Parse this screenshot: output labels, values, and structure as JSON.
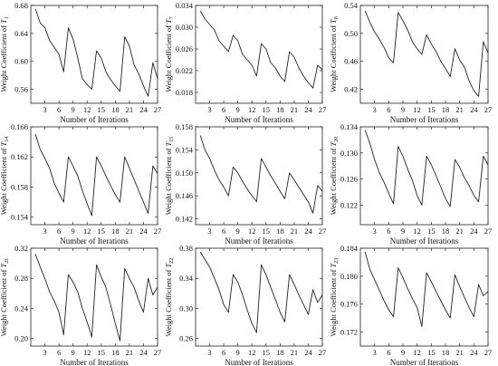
{
  "chart_data": [
    {
      "type": "line",
      "ylabel": {
        "prefix": "Weight Coefficient of ",
        "symbol": "T",
        "subscript": "1"
      },
      "xlabel": "Number of Iterations",
      "xlim": [
        0,
        27
      ],
      "xticks": [
        3,
        6,
        9,
        12,
        15,
        18,
        21,
        24,
        27
      ],
      "ylim": [
        0.54,
        0.68
      ],
      "yticks": [
        0.56,
        0.6,
        0.64,
        0.68
      ],
      "ytick_labels": [
        "0.56",
        "0.60",
        "0.64",
        "0.68"
      ],
      "x": [
        1,
        2,
        3,
        4,
        5,
        6,
        7,
        8,
        9,
        10,
        11,
        12,
        13,
        14,
        15,
        16,
        17,
        18,
        19,
        20,
        21,
        22,
        23,
        24,
        25,
        26,
        27
      ],
      "y": [
        0.675,
        0.655,
        0.648,
        0.63,
        0.62,
        0.61,
        0.585,
        0.648,
        0.632,
        0.605,
        0.575,
        0.567,
        0.56,
        0.615,
        0.605,
        0.585,
        0.574,
        0.565,
        0.557,
        0.635,
        0.622,
        0.595,
        0.582,
        0.565,
        0.55,
        0.598,
        0.575
      ]
    },
    {
      "type": "line",
      "ylabel": {
        "prefix": "Weight Coefficient of ",
        "symbol": "T",
        "subscript": "7"
      },
      "xlabel": "Number of Iterations",
      "xlim": [
        0,
        27
      ],
      "xticks": [
        3,
        6,
        9,
        12,
        15,
        18,
        21,
        24,
        27
      ],
      "ylim": [
        0.016,
        0.034
      ],
      "yticks": [
        0.018,
        0.022,
        0.026,
        0.03,
        0.034
      ],
      "ytick_labels": [
        "0.018",
        "0.022",
        "0.026",
        "0.030",
        "0.034"
      ],
      "x": [
        1,
        2,
        3,
        4,
        5,
        6,
        7,
        8,
        9,
        10,
        11,
        12,
        13,
        14,
        15,
        16,
        17,
        18,
        19,
        20,
        21,
        22,
        23,
        24,
        25,
        26,
        27
      ],
      "y": [
        0.033,
        0.0315,
        0.0305,
        0.0295,
        0.0275,
        0.0265,
        0.0255,
        0.0285,
        0.0275,
        0.025,
        0.024,
        0.023,
        0.021,
        0.027,
        0.026,
        0.0235,
        0.0225,
        0.021,
        0.02,
        0.0255,
        0.0245,
        0.0225,
        0.021,
        0.0198,
        0.0188,
        0.023,
        0.0222
      ]
    },
    {
      "type": "line",
      "ylabel": {
        "prefix": "Weight Coefficient of ",
        "symbol": "T",
        "subscript": "8"
      },
      "xlabel": "Number of Iterations",
      "xlim": [
        0,
        27
      ],
      "xticks": [
        3,
        6,
        9,
        12,
        15,
        18,
        21,
        24,
        27
      ],
      "ylim": [
        0.4,
        0.54
      ],
      "yticks": [
        0.42,
        0.46,
        0.5,
        0.54
      ],
      "ytick_labels": [
        "0.42",
        "0.46",
        "0.50",
        "0.54"
      ],
      "x": [
        1,
        2,
        3,
        4,
        5,
        6,
        7,
        8,
        9,
        10,
        11,
        12,
        13,
        14,
        15,
        16,
        17,
        18,
        19,
        20,
        21,
        22,
        23,
        24,
        25,
        26,
        27
      ],
      "y": [
        0.532,
        0.516,
        0.502,
        0.492,
        0.48,
        0.465,
        0.458,
        0.53,
        0.518,
        0.505,
        0.488,
        0.478,
        0.47,
        0.498,
        0.485,
        0.474,
        0.46,
        0.45,
        0.438,
        0.478,
        0.462,
        0.452,
        0.432,
        0.418,
        0.41,
        0.488,
        0.472
      ]
    },
    {
      "type": "line",
      "ylabel": {
        "prefix": "Weight Coefficient of ",
        "symbol": "T",
        "subscript": "14"
      },
      "xlabel": "Number of Iterations",
      "xlim": [
        0,
        27
      ],
      "xticks": [
        3,
        6,
        9,
        12,
        15,
        18,
        21,
        24,
        27
      ],
      "ylim": [
        0.153,
        0.166
      ],
      "yticks": [
        0.154,
        0.158,
        0.162,
        0.166
      ],
      "ytick_labels": [
        "0.154",
        "0.158",
        "0.162",
        "0.166"
      ],
      "x": [
        1,
        2,
        3,
        4,
        5,
        6,
        7,
        8,
        9,
        10,
        11,
        12,
        13,
        14,
        15,
        16,
        17,
        18,
        19,
        20,
        21,
        22,
        23,
        24,
        25,
        26,
        27
      ],
      "y": [
        0.165,
        0.163,
        0.1618,
        0.1605,
        0.1585,
        0.1572,
        0.156,
        0.162,
        0.1608,
        0.1595,
        0.1575,
        0.1558,
        0.1542,
        0.162,
        0.1608,
        0.1595,
        0.1582,
        0.157,
        0.156,
        0.162,
        0.1605,
        0.159,
        0.1575,
        0.156,
        0.1545,
        0.1608,
        0.1598
      ]
    },
    {
      "type": "line",
      "ylabel": {
        "prefix": "Weight Coefficient of ",
        "symbol": "T",
        "subscript": "15"
      },
      "xlabel": "Number of Iterations",
      "xlim": [
        0,
        27
      ],
      "xticks": [
        3,
        6,
        9,
        12,
        15,
        18,
        21,
        24,
        27
      ],
      "ylim": [
        0.141,
        0.158
      ],
      "yticks": [
        0.142,
        0.146,
        0.15,
        0.154,
        0.158
      ],
      "ytick_labels": [
        "0.142",
        "0.146",
        "0.150",
        "0.154",
        "0.158"
      ],
      "x": [
        1,
        2,
        3,
        4,
        5,
        6,
        7,
        8,
        9,
        10,
        11,
        12,
        13,
        14,
        15,
        16,
        17,
        18,
        19,
        20,
        21,
        22,
        23,
        24,
        25,
        26,
        27
      ],
      "y": [
        0.1565,
        0.154,
        0.1525,
        0.1505,
        0.1488,
        0.1475,
        0.146,
        0.151,
        0.15,
        0.1485,
        0.1472,
        0.146,
        0.145,
        0.1525,
        0.151,
        0.1495,
        0.1482,
        0.1468,
        0.1455,
        0.15,
        0.1488,
        0.1475,
        0.1462,
        0.145,
        0.143,
        0.1478,
        0.1468
      ]
    },
    {
      "type": "line",
      "ylabel": {
        "prefix": "Weight Coefficient of ",
        "symbol": "T",
        "subscript": "20"
      },
      "xlabel": "Number of Iterations",
      "xlim": [
        0,
        27
      ],
      "xticks": [
        3,
        6,
        9,
        12,
        15,
        18,
        21,
        24,
        27
      ],
      "ylim": [
        0.119,
        0.134
      ],
      "yticks": [
        0.122,
        0.126,
        0.13,
        0.134
      ],
      "ytick_labels": [
        "0.122",
        "0.126",
        "0.130",
        "0.134"
      ],
      "x": [
        1,
        2,
        3,
        4,
        5,
        6,
        7,
        8,
        9,
        10,
        11,
        12,
        13,
        14,
        15,
        16,
        17,
        18,
        19,
        20,
        21,
        22,
        23,
        24,
        25,
        26,
        27
      ],
      "y": [
        0.1335,
        0.1315,
        0.129,
        0.127,
        0.1255,
        0.1238,
        0.1222,
        0.131,
        0.1295,
        0.1275,
        0.1258,
        0.1235,
        0.122,
        0.1295,
        0.1282,
        0.1265,
        0.1248,
        0.123,
        0.1218,
        0.129,
        0.1278,
        0.1262,
        0.125,
        0.1235,
        0.1225,
        0.1295,
        0.1282
      ]
    },
    {
      "type": "line",
      "ylabel": {
        "prefix": "Weight Coefficient of ",
        "symbol": "T",
        "subscript": "21"
      },
      "xlabel": "Number of Iterations",
      "xlim": [
        0,
        27
      ],
      "xticks": [
        3,
        6,
        9,
        12,
        15,
        18,
        21,
        24,
        27
      ],
      "ylim": [
        0.19,
        0.32
      ],
      "yticks": [
        0.2,
        0.24,
        0.28,
        0.32
      ],
      "ytick_labels": [
        "0.20",
        "0.24",
        "0.28",
        "0.32"
      ],
      "x": [
        1,
        2,
        3,
        4,
        5,
        6,
        7,
        8,
        9,
        10,
        11,
        12,
        13,
        14,
        15,
        16,
        17,
        18,
        19,
        20,
        21,
        22,
        23,
        24,
        25,
        26,
        27
      ],
      "y": [
        0.312,
        0.295,
        0.28,
        0.262,
        0.25,
        0.235,
        0.205,
        0.285,
        0.275,
        0.262,
        0.24,
        0.222,
        0.202,
        0.298,
        0.282,
        0.268,
        0.245,
        0.22,
        0.197,
        0.293,
        0.28,
        0.268,
        0.25,
        0.235,
        0.28,
        0.258,
        0.268
      ]
    },
    {
      "type": "line",
      "ylabel": {
        "prefix": "Weight Coefficient of ",
        "symbol": "T",
        "subscript": "22"
      },
      "xlabel": "Number of Iterations",
      "xlim": [
        0,
        27
      ],
      "xticks": [
        3,
        6,
        9,
        12,
        15,
        18,
        21,
        24,
        27
      ],
      "ylim": [
        0.25,
        0.38
      ],
      "yticks": [
        0.26,
        0.3,
        0.34,
        0.38
      ],
      "ytick_labels": [
        "0.26",
        "0.30",
        "0.34",
        "0.38"
      ],
      "x": [
        1,
        2,
        3,
        4,
        5,
        6,
        7,
        8,
        9,
        10,
        11,
        12,
        13,
        14,
        15,
        16,
        17,
        18,
        19,
        20,
        21,
        22,
        23,
        24,
        25,
        26,
        27
      ],
      "y": [
        0.375,
        0.365,
        0.355,
        0.34,
        0.325,
        0.305,
        0.295,
        0.345,
        0.335,
        0.318,
        0.298,
        0.28,
        0.268,
        0.358,
        0.345,
        0.328,
        0.312,
        0.295,
        0.282,
        0.345,
        0.332,
        0.318,
        0.305,
        0.292,
        0.325,
        0.308,
        0.318
      ]
    },
    {
      "type": "line",
      "ylabel": {
        "prefix": "Weight Coefficient of ",
        "symbol": "T",
        "subscript": "23"
      },
      "xlabel": "Number of Iterations",
      "xlim": [
        0,
        27
      ],
      "xticks": [
        3,
        6,
        9,
        12,
        15,
        18,
        21,
        24,
        27
      ],
      "ylim": [
        0.17,
        0.184
      ],
      "yticks": [
        0.172,
        0.176,
        0.18,
        0.184
      ],
      "ytick_labels": [
        "0.172",
        "0.176",
        "0.180",
        "0.184"
      ],
      "x": [
        1,
        2,
        3,
        4,
        5,
        6,
        7,
        8,
        9,
        10,
        11,
        12,
        13,
        14,
        15,
        16,
        17,
        18,
        19,
        20,
        21,
        22,
        23,
        24,
        25,
        26,
        27
      ],
      "y": [
        0.1835,
        0.181,
        0.1795,
        0.178,
        0.1765,
        0.1752,
        0.1742,
        0.1812,
        0.1798,
        0.1782,
        0.1768,
        0.1755,
        0.1728,
        0.1805,
        0.1792,
        0.1778,
        0.1765,
        0.1752,
        0.174,
        0.1802,
        0.1785,
        0.177,
        0.1755,
        0.1742,
        0.1788,
        0.1772,
        0.1778
      ]
    }
  ]
}
